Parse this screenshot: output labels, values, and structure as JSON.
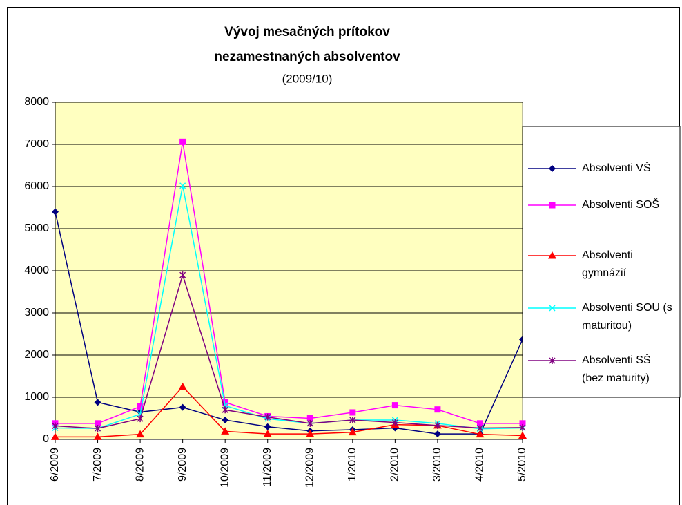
{
  "chart_data": {
    "type": "line",
    "title": [
      "Vývoj mesačných prítokov",
      "nezamestnaných absolventov"
    ],
    "subtitle": "(2009/10)",
    "categories": [
      "6/2009",
      "7/2009",
      "8/2009",
      "9/2009",
      "10/2009",
      "11/2009",
      "12/2009",
      "1/2010",
      "2/2010",
      "3/2010",
      "4/2010",
      "5/2010"
    ],
    "series": [
      {
        "name": "Absolventi VŠ",
        "color": "#000080",
        "marker": "diamond",
        "values": [
          5400,
          880,
          650,
          760,
          460,
          300,
          200,
          230,
          270,
          130,
          130,
          2370
        ]
      },
      {
        "name": "Absolventi SOŠ",
        "color": "#ff00ff",
        "marker": "square",
        "values": [
          380,
          380,
          780,
          7060,
          880,
          550,
          500,
          640,
          810,
          710,
          380,
          380
        ]
      },
      {
        "name": "Absolventi gymnázií",
        "color": "#ff0000",
        "marker": "triangle",
        "values": [
          60,
          60,
          120,
          1250,
          190,
          130,
          130,
          170,
          350,
          330,
          120,
          90
        ]
      },
      {
        "name": "Absolventi SOU (s maturitou)",
        "color": "#00ffff",
        "marker": "x",
        "values": [
          270,
          260,
          600,
          6020,
          800,
          490,
          380,
          460,
          460,
          380,
          250,
          270
        ]
      },
      {
        "name": "Absolventi SŠ (bez maturity)",
        "color": "#800080",
        "marker": "star",
        "values": [
          320,
          260,
          490,
          3900,
          700,
          530,
          380,
          460,
          400,
          330,
          270,
          280
        ]
      }
    ],
    "ylim": [
      0,
      8000
    ],
    "yticks": [
      0,
      1000,
      2000,
      3000,
      4000,
      5000,
      6000,
      7000,
      8000
    ],
    "grid": true,
    "legend": "right",
    "plot_background": "#ffffc0"
  }
}
